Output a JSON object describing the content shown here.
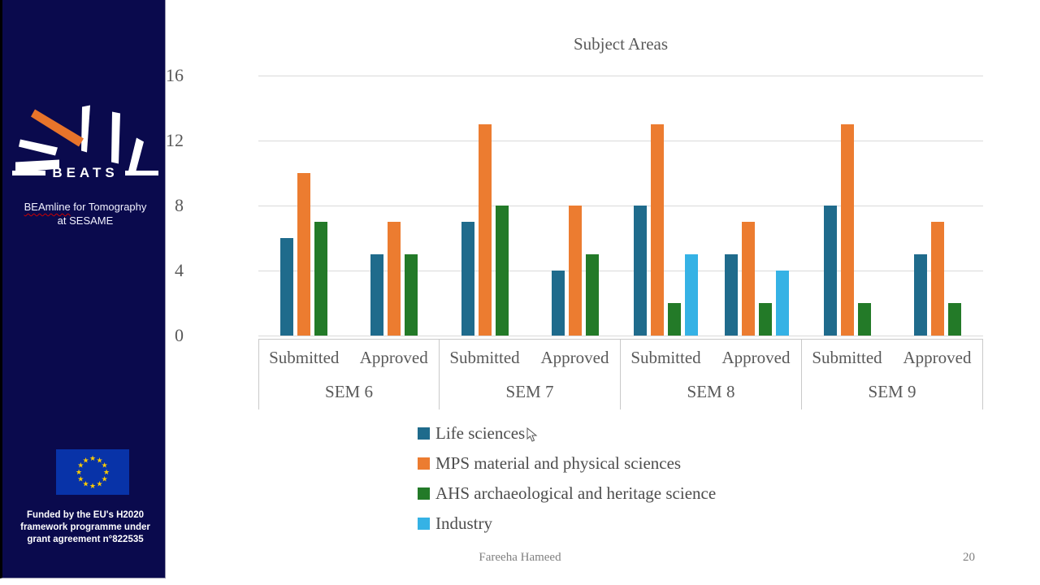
{
  "sidebar": {
    "logo": {
      "brand": "BEATS",
      "tagline_line1_word": "BEAmline",
      "tagline_line1_rest": " for Tomography",
      "tagline_line2": "at SESAME"
    },
    "funding": {
      "line1": "Funded by the EU's H2020",
      "line2": "framework programme under",
      "line3": "grant agreement n°822535"
    }
  },
  "chart_data": {
    "type": "bar",
    "title": "Subject Areas",
    "xlabel": "",
    "ylabel": "",
    "y_axis": {
      "ticks": [
        16,
        12,
        8,
        4,
        0
      ],
      "max": 16,
      "grid": true
    },
    "groups": [
      "SEM 6",
      "SEM 7",
      "SEM 8",
      "SEM 9"
    ],
    "subgroups": [
      "Submitted",
      "Approved"
    ],
    "series": [
      {
        "name": "Life sciences",
        "color": "#1f6b8c"
      },
      {
        "name": "MPS material and physical sciences",
        "color": "#ec7c30"
      },
      {
        "name": "AHS archaeological and heritage science",
        "color": "#237a28"
      },
      {
        "name": "Industry",
        "color": "#35b2e5"
      }
    ],
    "values": {
      "SEM 6": {
        "Submitted": [
          6,
          10,
          7,
          null
        ],
        "Approved": [
          5,
          7,
          5,
          null
        ]
      },
      "SEM 7": {
        "Submitted": [
          7,
          13,
          8,
          null
        ],
        "Approved": [
          4,
          8,
          5,
          null
        ]
      },
      "SEM 8": {
        "Submitted": [
          8,
          13,
          2,
          5
        ],
        "Approved": [
          5,
          7,
          2,
          4
        ]
      },
      "SEM 9": {
        "Submitted": [
          8,
          13,
          2,
          null
        ],
        "Approved": [
          5,
          7,
          2,
          null
        ]
      }
    },
    "legend_position": "bottom-left"
  },
  "footer": {
    "author": "Fareeha Hameed",
    "page_number": "20"
  }
}
